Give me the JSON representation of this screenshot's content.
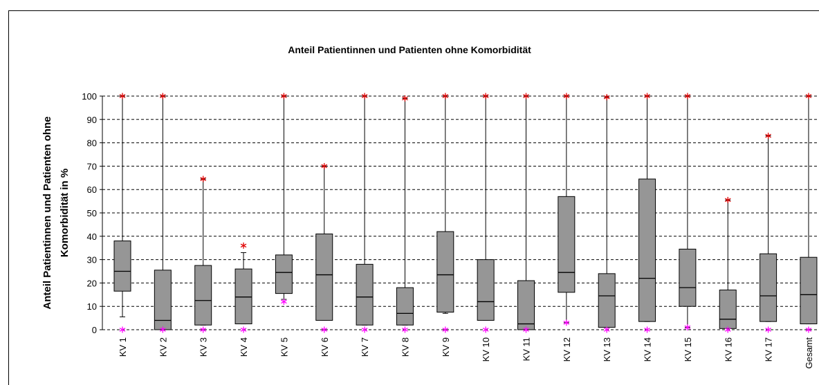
{
  "chart_data": {
    "type": "box",
    "title": "Anteil Patientinnen und Patienten ohne Komorbidität",
    "y_label": [
      "Anteil Patientinnen und Patienten ohne",
      "Komorbidität in %"
    ],
    "categories": [
      "KV 1",
      "KV 2",
      "KV 3",
      "KV 4",
      "KV 5",
      "KV 6",
      "KV 7",
      "KV 8",
      "KV 9",
      "KV 10",
      "KV 11",
      "KV 12",
      "KV 13",
      "KV 14",
      "KV 15",
      "KV 16",
      "KV 17",
      "Gesamt"
    ],
    "min": [
      0,
      0,
      0,
      0,
      12,
      0,
      0,
      0,
      0,
      0,
      0,
      3,
      0,
      0,
      1,
      0,
      0,
      0
    ],
    "whisker_low": [
      5.5,
      0,
      2,
      2.5,
      13,
      4,
      2,
      2,
      7,
      4,
      0,
      3,
      1,
      3.5,
      1,
      0.5,
      3.5,
      2.5
    ],
    "q1": [
      16.5,
      0,
      2,
      2.5,
      15.5,
      4,
      2,
      2,
      7.5,
      4,
      0,
      16,
      1,
      3.5,
      10,
      0.5,
      3.5,
      2.5
    ],
    "median": [
      25,
      4,
      12.5,
      14,
      24.5,
      23.5,
      14,
      7,
      23.5,
      12,
      2.5,
      24.5,
      14.5,
      22,
      18,
      4.5,
      14.5,
      15
    ],
    "q3": [
      38,
      25.5,
      27.5,
      26,
      32,
      41,
      28,
      18,
      42,
      30,
      21,
      57,
      24,
      64.5,
      34.5,
      17,
      32.5,
      31
    ],
    "whisker_high": [
      100,
      100,
      64.5,
      33,
      100,
      70,
      100,
      99,
      100,
      100,
      100,
      100,
      99.5,
      100,
      100,
      55.5,
      83,
      100
    ],
    "max": [
      100,
      100,
      64.5,
      36,
      100,
      70,
      100,
      99,
      100,
      100,
      100,
      100,
      99.5,
      100,
      100,
      55.5,
      83,
      100
    ],
    "box_color": "#969696",
    "max_color": "#e00000",
    "min_color": "#ff00ff",
    "ylim": [
      0,
      100
    ],
    "yticks": [
      0,
      10,
      20,
      30,
      40,
      50,
      60,
      70,
      80,
      90,
      100
    ],
    "grid": true
  }
}
